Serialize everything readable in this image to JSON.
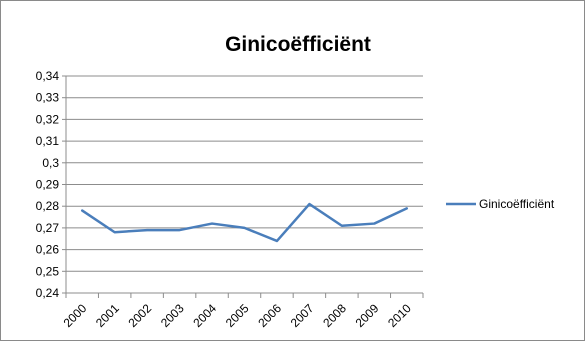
{
  "chart_data": {
    "type": "line",
    "title": "Ginicoëfficiënt",
    "xlabel": "",
    "ylabel": "",
    "categories": [
      "2000",
      "2001",
      "2002",
      "2003",
      "2004",
      "2005",
      "2006",
      "2007",
      "2008",
      "2009",
      "2010"
    ],
    "series": [
      {
        "name": "Ginicoëfficiënt",
        "values": [
          0.278,
          0.268,
          0.269,
          0.269,
          0.272,
          0.27,
          0.264,
          0.281,
          0.271,
          0.272,
          0.279
        ],
        "color": "#4a7ebb"
      }
    ],
    "ylim": [
      0.24,
      0.34
    ],
    "yticks": [
      0.24,
      0.25,
      0.26,
      0.27,
      0.28,
      0.29,
      0.3,
      0.31,
      0.32,
      0.33,
      0.34
    ],
    "ytick_labels": [
      "0,24",
      "0,25",
      "0,26",
      "0,27",
      "0,28",
      "0,29",
      "0,3",
      "0,31",
      "0,32",
      "0,33",
      "0,34"
    ],
    "grid": true,
    "legend_position": "right"
  }
}
